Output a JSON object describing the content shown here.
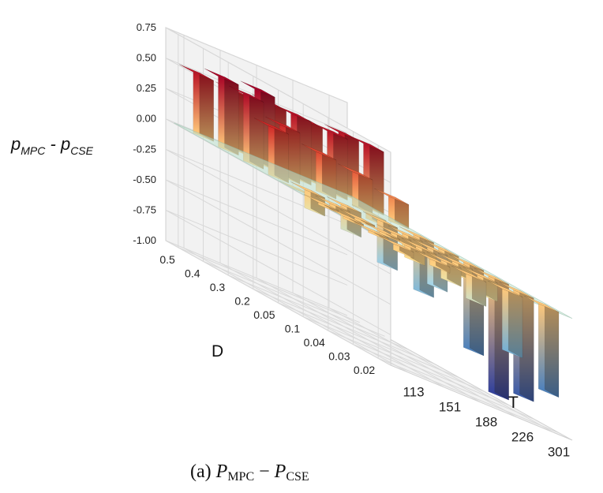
{
  "chart_data": {
    "type": "bar3d",
    "zlabel": {
      "main": "p",
      "sub1": "MPC",
      "sep": " - ",
      "main2": "p",
      "sub2": "CSE"
    },
    "xlabel": "T",
    "ylabel": "D",
    "caption": {
      "prefix": "(a) ",
      "p1": "P",
      "s1": "MPC",
      "op": " − ",
      "p2": "P",
      "s2": "CSE"
    },
    "z_ticks": [
      "0.75",
      "0.50",
      "0.25",
      "0.00",
      "-0.25",
      "-0.50",
      "-0.75",
      "-1.00"
    ],
    "z_tick_values": [
      0.75,
      0.5,
      0.25,
      0.0,
      -0.25,
      -0.5,
      -0.75,
      -1.0
    ],
    "zlim": [
      -1.0,
      0.75
    ],
    "T_ticks": [
      "113",
      "151",
      "188",
      "226",
      "301"
    ],
    "D_ticks": [
      "0.5",
      "0.4",
      "0.3",
      "0.2",
      "0.05",
      "0.1",
      "0.04",
      "0.03",
      "0.02"
    ],
    "values": [
      [
        0.5,
        0.48,
        0.5,
        0.48,
        0.5
      ],
      [
        0.58,
        0.6,
        0.52,
        0.5,
        0.52
      ],
      [
        0.55,
        0.42,
        0.32,
        0.28,
        0.2
      ],
      [
        0.4,
        -0.15,
        -0.2,
        -0.35,
        -0.45
      ],
      [
        0.0,
        -0.05,
        0.05,
        -0.1,
        -0.15
      ],
      [
        -0.02,
        -0.02,
        -0.05,
        -0.3,
        -0.7
      ],
      [
        -0.02,
        -0.02,
        -0.05,
        -0.1,
        -0.95
      ],
      [
        -0.02,
        -0.1,
        -0.15,
        -0.15,
        -0.85
      ],
      [
        -0.05,
        -0.05,
        -0.2,
        -0.5,
        -0.7
      ]
    ],
    "plane_level": 0.0,
    "grid": true,
    "colormap": "RdYlBu_r"
  }
}
